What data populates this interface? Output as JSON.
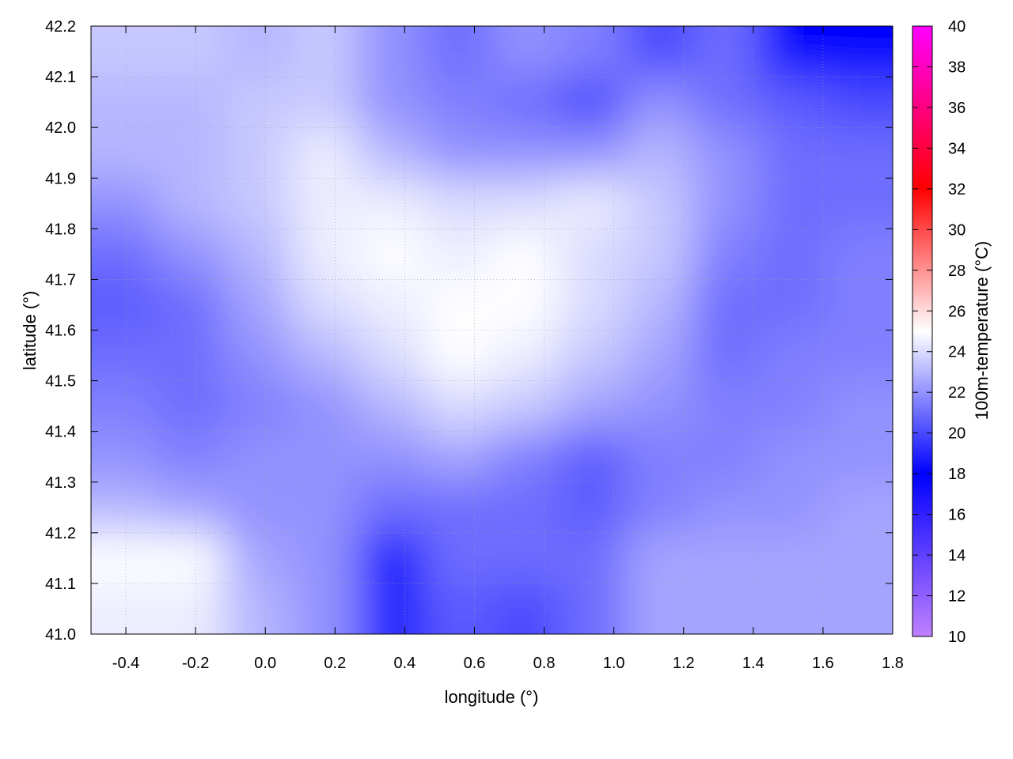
{
  "chart_data": {
    "type": "heatmap",
    "title": "",
    "xlabel": "longitude (°)",
    "ylabel": "latitude (°)",
    "colorbar_label": "100m-temperature (°C)",
    "xlim": [
      -0.5,
      1.8
    ],
    "ylim": [
      41.0,
      42.2
    ],
    "clim": [
      10,
      40
    ],
    "grid": true,
    "xticks": [
      "-0.4",
      "-0.2",
      "0.0",
      "0.2",
      "0.4",
      "0.6",
      "0.8",
      "1.0",
      "1.2",
      "1.4",
      "1.6",
      "1.8"
    ],
    "xtick_values": [
      -0.4,
      -0.2,
      0.0,
      0.2,
      0.4,
      0.6,
      0.8,
      1.0,
      1.2,
      1.4,
      1.6,
      1.8
    ],
    "yticks": [
      "41.0",
      "41.1",
      "41.2",
      "41.3",
      "41.4",
      "41.5",
      "41.6",
      "41.7",
      "41.8",
      "41.9",
      "42.0",
      "42.1",
      "42.2"
    ],
    "ytick_values": [
      41.0,
      41.1,
      41.2,
      41.3,
      41.4,
      41.5,
      41.6,
      41.7,
      41.8,
      41.9,
      42.0,
      42.1,
      42.2
    ],
    "cbticks": [
      "10",
      "12",
      "14",
      "16",
      "18",
      "20",
      "22",
      "24",
      "26",
      "28",
      "30",
      "32",
      "34",
      "36",
      "38",
      "40"
    ],
    "cbtick_values": [
      10,
      12,
      14,
      16,
      18,
      20,
      22,
      24,
      26,
      28,
      30,
      32,
      34,
      36,
      38,
      40
    ],
    "colormap": [
      {
        "value": 10,
        "color": "#c080ff"
      },
      {
        "value": 18,
        "color": "#0000ff"
      },
      {
        "value": 25,
        "color": "#ffffff"
      },
      {
        "value": 32,
        "color": "#ff0000"
      },
      {
        "value": 40,
        "color": "#ff00ff"
      }
    ],
    "contour_color": "#333333",
    "lat_centers": [
      42.15,
      42.05,
      41.95,
      41.85,
      41.75,
      41.65,
      41.55,
      41.45,
      41.35,
      41.25,
      41.15,
      41.05
    ],
    "lon_range_cells": 12,
    "values": [
      [
        23.5,
        23.5,
        23,
        23.5,
        22,
        21,
        22,
        21.5,
        20,
        21,
        18,
        18
      ],
      [
        23,
        23,
        23.5,
        23.5,
        22,
        21.5,
        21,
        20,
        22,
        21,
        20.5,
        20
      ],
      [
        23,
        23,
        23.5,
        24.5,
        23,
        22,
        22,
        22,
        23,
        22,
        21,
        21
      ],
      [
        22,
        23,
        23.5,
        24.5,
        24.5,
        24,
        24,
        24.5,
        23.5,
        22,
        21,
        21
      ],
      [
        21,
        22,
        23,
        24.5,
        25,
        24.5,
        25,
        24,
        23.5,
        21.5,
        21,
        21.5
      ],
      [
        20.5,
        21,
        22.5,
        24,
        24.5,
        25,
        25,
        24,
        23,
        21,
        21,
        21.5
      ],
      [
        21,
        21,
        22,
        23,
        24,
        25,
        24.5,
        23.5,
        22.5,
        21,
        21.5,
        21.5
      ],
      [
        21.5,
        21,
        21.5,
        22,
        23,
        24,
        23.5,
        22.5,
        22,
        21.5,
        21.5,
        22
      ],
      [
        22,
        21.5,
        22,
        22,
        22,
        22.5,
        21.5,
        20.5,
        21.5,
        21.5,
        22,
        22
      ],
      [
        23,
        22.5,
        22,
        22,
        21,
        21,
        21,
        20.5,
        21.5,
        22,
        22,
        22.5
      ],
      [
        25,
        25,
        22.5,
        22,
        18.5,
        21,
        21,
        21,
        22.5,
        22.5,
        22.5,
        22.5
      ],
      [
        24.5,
        24.5,
        23,
        22,
        19,
        20.5,
        20,
        21,
        22.5,
        22.5,
        22.5,
        22.5
      ]
    ]
  }
}
